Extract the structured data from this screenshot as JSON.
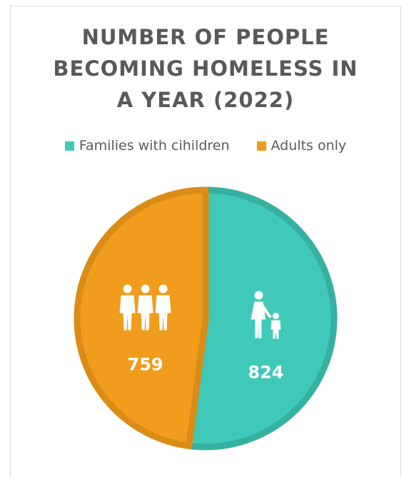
{
  "chart_data": {
    "type": "pie",
    "title_lines": [
      "NUMBER OF PEOPLE",
      "BECOMING HOMELESS IN",
      "A YEAR (2022)"
    ],
    "categories": [
      "Families with cihildren",
      "Adults only"
    ],
    "values": [
      824,
      759
    ],
    "value_labels": [
      "824",
      "759"
    ],
    "colors": [
      "#40c9b8",
      "#f09c1c"
    ],
    "border_colors": [
      "#36b0a1",
      "#d98d17"
    ],
    "icons": [
      "mother-child-icon",
      "three-adults-icon"
    ],
    "legend_position": "top",
    "start_angle_deg": 0
  }
}
